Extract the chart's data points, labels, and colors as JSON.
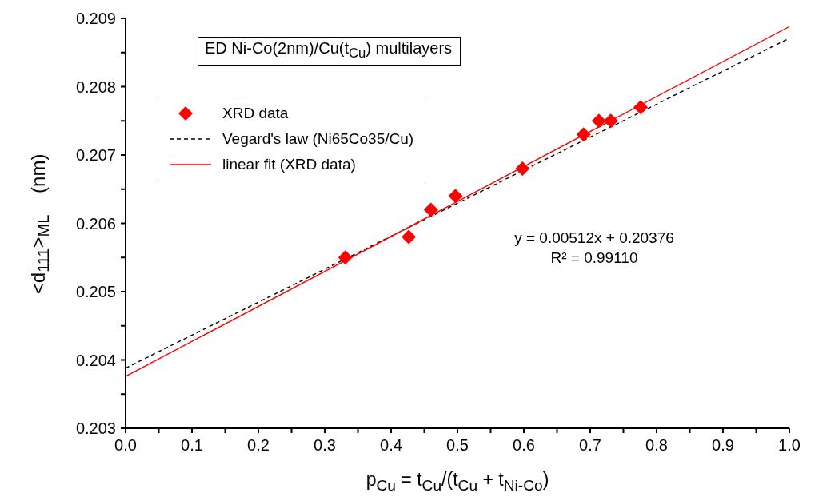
{
  "chart_data": {
    "type": "scatter",
    "title": "ED Ni-Co(2nm)/Cu(t$_{Cu}$) multilayers",
    "xlabel": "p$_{Cu}$ = t$_{Cu}$/(t$_{Cu}$ + t$_{Ni-Co}$)",
    "ylabel": "<d$_{111}$>$_{ML}$    (nm)",
    "xlim": [
      0,
      1
    ],
    "ylim": [
      0.203,
      0.209
    ],
    "xticks": [
      {
        "value": 0,
        "label": "0.0"
      },
      {
        "value": 0.05,
        "label": null
      },
      {
        "value": 0.1,
        "label": "0.1"
      },
      {
        "value": 0.15,
        "label": null
      },
      {
        "value": 0.2,
        "label": "0.2"
      },
      {
        "value": 0.25,
        "label": null
      },
      {
        "value": 0.3,
        "label": "0.3"
      },
      {
        "value": 0.35,
        "label": null
      },
      {
        "value": 0.4,
        "label": "0.4"
      },
      {
        "value": 0.45,
        "label": null
      },
      {
        "value": 0.5,
        "label": "0.5"
      },
      {
        "value": 0.55,
        "label": null
      },
      {
        "value": 0.6,
        "label": "0.6"
      },
      {
        "value": 0.65,
        "label": null
      },
      {
        "value": 0.7,
        "label": "0.7"
      },
      {
        "value": 0.75,
        "label": null
      },
      {
        "value": 0.8,
        "label": "0.8"
      },
      {
        "value": 0.85,
        "label": null
      },
      {
        "value": 0.9,
        "label": "0.9"
      },
      {
        "value": 0.95,
        "label": null
      },
      {
        "value": 1,
        "label": "1.0"
      }
    ],
    "yticks": [
      0.203,
      {
        "value": 0.2035,
        "label": null
      },
      0.204,
      {
        "value": 0.2045,
        "label": null
      },
      0.205,
      {
        "value": 0.2055,
        "label": null
      },
      0.206,
      {
        "value": 0.2065,
        "label": null
      },
      0.207,
      {
        "value": 0.2075,
        "label": null
      },
      0.208,
      {
        "value": 0.2085,
        "label": null
      },
      0.209
    ],
    "grid": false,
    "legend": "top left",
    "series": [
      {
        "name": "XRD data",
        "marker": "diamond",
        "color": "#ff0000",
        "x": [
          0.331,
          0.4265,
          0.46,
          0.497,
          0.598,
          0.69,
          0.713,
          0.731,
          0.776
        ],
        "values": [
          0.2055,
          0.2058,
          0.2062,
          0.2064,
          0.2068,
          0.2073,
          0.2075,
          0.2075,
          0.2077
        ]
      },
      {
        "name": "Vegard's law (Ni65Co35/Cu)",
        "type": "line",
        "marker": "none",
        "line_style": "dashed",
        "color": "#000000",
        "x": [
          0,
          1
        ],
        "values": [
          0.20388,
          0.20871
        ]
      },
      {
        "name": "linear fit (XRD data)",
        "type": "line",
        "marker": "none",
        "line_style": "solid",
        "color": "#ff0000",
        "x": [
          0,
          1
        ],
        "values": [
          0.20376,
          0.20888
        ]
      }
    ],
    "annotations": [
      "y = 0.00512x + 0.20376",
      "R² = 0.99110"
    ]
  }
}
